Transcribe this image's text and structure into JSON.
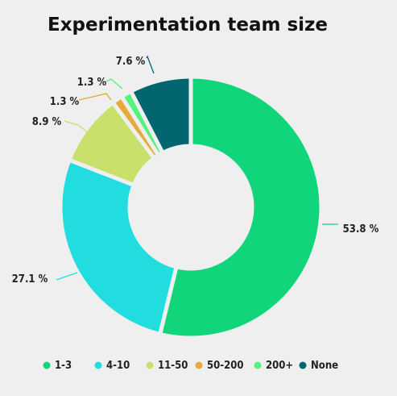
{
  "chart_data": {
    "type": "pie",
    "title": "Experimentation team size",
    "categories": [
      "1-3",
      "4-10",
      "11-50",
      "50-200",
      "200+",
      "None"
    ],
    "values": [
      53.8,
      27.1,
      8.9,
      1.3,
      1.3,
      7.6
    ],
    "value_labels": [
      "53.8 %",
      "27.1 %",
      "8.9 %",
      "1.3 %",
      "1.3 %",
      "7.6 %"
    ],
    "colors": [
      "#10d57a",
      "#22dde0",
      "#c9e06a",
      "#e6a93a",
      "#55f27d",
      "#02656f"
    ],
    "legend_position": "bottom",
    "donut": true
  }
}
